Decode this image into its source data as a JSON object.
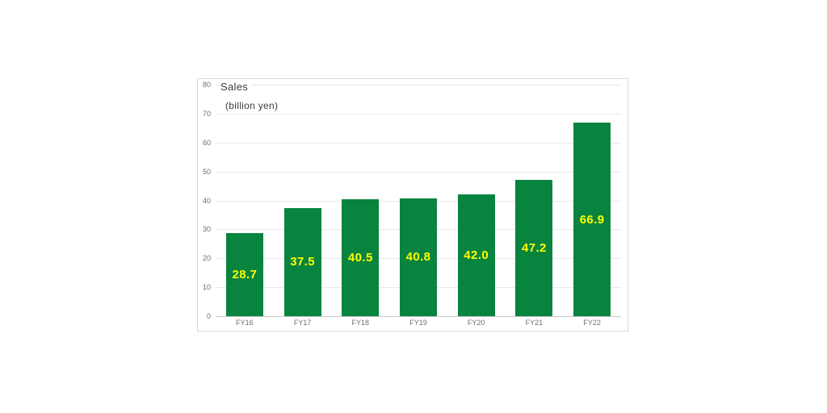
{
  "chart_data": {
    "type": "bar",
    "title": "Sales",
    "subtitle": "(billion yen)",
    "categories": [
      "FY16",
      "FY17",
      "FY18",
      "FY19",
      "FY20",
      "FY21",
      "FY22"
    ],
    "values": [
      28.7,
      37.5,
      40.5,
      40.8,
      42.0,
      47.2,
      66.9
    ],
    "value_labels": [
      "28.7",
      "37.5",
      "40.5",
      "40.8",
      "42.0",
      "47.2",
      "66.9"
    ],
    "xlabel": "",
    "ylabel": "",
    "ylim": [
      0,
      80
    ],
    "ytick_step": 10,
    "grid": true,
    "legend": "none",
    "colors": {
      "bar": "#08843f",
      "value_label": "#ffff00",
      "gridline": "#e9e9e9",
      "axis_line": "#c9c9c9",
      "tick_label": "#6e6e6e",
      "title_text": "#3a3a3a",
      "chart_border": "#d9d9d9",
      "background": "#ffffff"
    }
  }
}
